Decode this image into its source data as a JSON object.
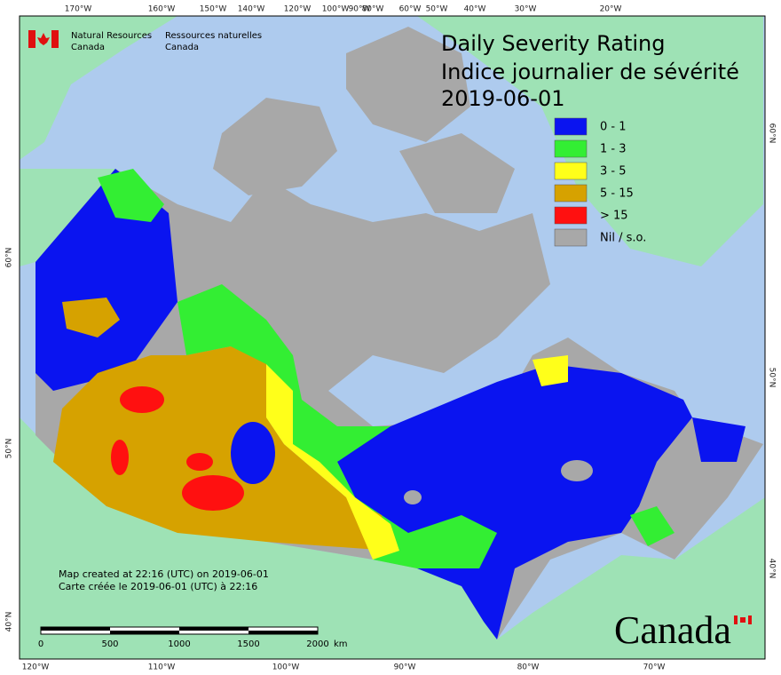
{
  "header": {
    "agency_en": "Natural Resources",
    "country_en": "Canada",
    "agency_fr": "Ressources naturelles",
    "country_fr": "Canada"
  },
  "title": {
    "line1": "Daily Severity Rating",
    "line2": "Indice journalier de sévérité",
    "date": "2019-06-01"
  },
  "legend": {
    "items": [
      {
        "label": "0 - 1",
        "color": "#0a14f0"
      },
      {
        "label": "1 - 3",
        "color": "#33ee33"
      },
      {
        "label": "3 - 5",
        "color": "#ffff1a"
      },
      {
        "label": "5 - 15",
        "color": "#d6a200"
      },
      {
        "label": "> 15",
        "color": "#ff1010"
      },
      {
        "label": "Nil / s.o.",
        "color": "#a8a8a8"
      }
    ]
  },
  "graticule": {
    "top": [
      "170°W",
      "160°W",
      "150°W",
      "140°W",
      "120°W",
      "100°W",
      "90°W",
      "80°W",
      "60°W",
      "50°W",
      "40°W",
      "30°W",
      "20°W"
    ],
    "bottom": [
      "120°W",
      "110°W",
      "100°W",
      "90°W",
      "80°W",
      "70°W"
    ],
    "left": [
      "60°N",
      "50°N",
      "40°N"
    ],
    "right": [
      "60°N",
      "50°N",
      "40°N"
    ]
  },
  "footer": {
    "line1": "Map created at 22:16 (UTC) on 2019-06-01",
    "line2": "Carte créée le 2019-06-01 (UTC) à 22:16"
  },
  "scale_bar": {
    "labels": [
      "0",
      "500",
      "1000",
      "1500",
      "2000"
    ],
    "unit": "km"
  },
  "wordmark": "Canada"
}
